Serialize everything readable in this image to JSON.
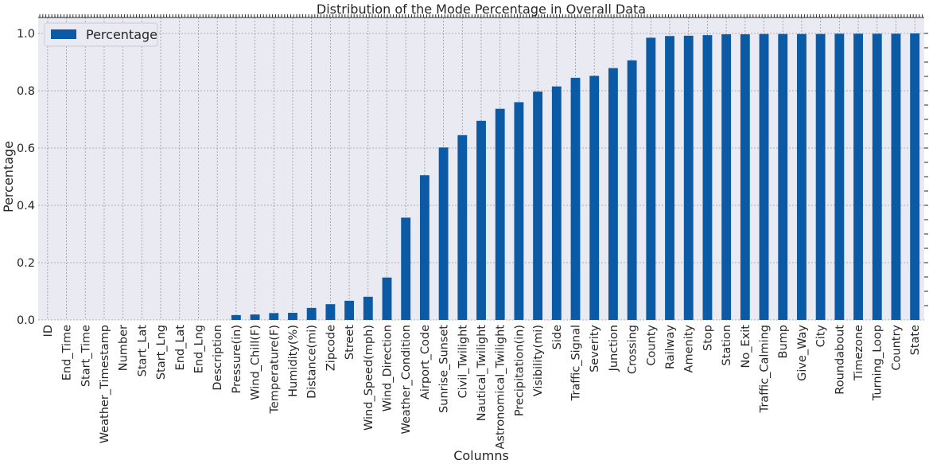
{
  "chart_data": {
    "type": "bar",
    "title": "Distribution of the Mode Percentage in Overall Data",
    "xlabel": "Columns",
    "ylabel": "Percentage",
    "ylim": [
      0,
      1.0
    ],
    "yticks": [
      "0.0",
      "0.2",
      "0.4",
      "0.6",
      "0.8",
      "1.0"
    ],
    "grid": true,
    "legend_position": "top-left",
    "bar_color": "#0b5aa6",
    "plot_background": "#eaeaf2",
    "categories": [
      "ID",
      "End_Time",
      "Start_Time",
      "Weather_Timestamp",
      "Number",
      "Start_Lat",
      "Start_Lng",
      "End_Lat",
      "End_Lng",
      "Description",
      "Pressure(in)",
      "Wind_Chill(F)",
      "Temperature(F)",
      "Humidity(%)",
      "Distance(mi)",
      "Zipcode",
      "Street",
      "Wind_Speed(mph)",
      "Wind_Direction",
      "Weather_Condition",
      "Airport_Code",
      "Sunrise_Sunset",
      "Civil_Twilight",
      "Nautical_Twilight",
      "Astronomical_Twilight",
      "Precipitation(in)",
      "Visibility(mi)",
      "Side",
      "Traffic_Signal",
      "Severity",
      "Junction",
      "Crossing",
      "County",
      "Railway",
      "Amenity",
      "Stop",
      "Station",
      "No_Exit",
      "Traffic_Calming",
      "Bump",
      "Give_Way",
      "City",
      "Roundabout",
      "Timezone",
      "Turning_Loop",
      "Country",
      "State"
    ],
    "series": [
      {
        "name": "Percentage",
        "values": [
          0.0,
          0.0,
          0.0,
          0.0,
          0.0,
          0.0,
          0.0,
          0.0,
          0.0,
          0.0,
          0.017,
          0.019,
          0.024,
          0.025,
          0.042,
          0.055,
          0.067,
          0.081,
          0.148,
          0.357,
          0.505,
          0.602,
          0.645,
          0.695,
          0.737,
          0.76,
          0.797,
          0.815,
          0.845,
          0.852,
          0.879,
          0.906,
          0.985,
          0.991,
          0.992,
          0.994,
          0.997,
          0.997,
          0.998,
          0.998,
          0.998,
          0.998,
          0.999,
          0.999,
          0.999,
          0.999,
          1.0
        ]
      }
    ]
  }
}
